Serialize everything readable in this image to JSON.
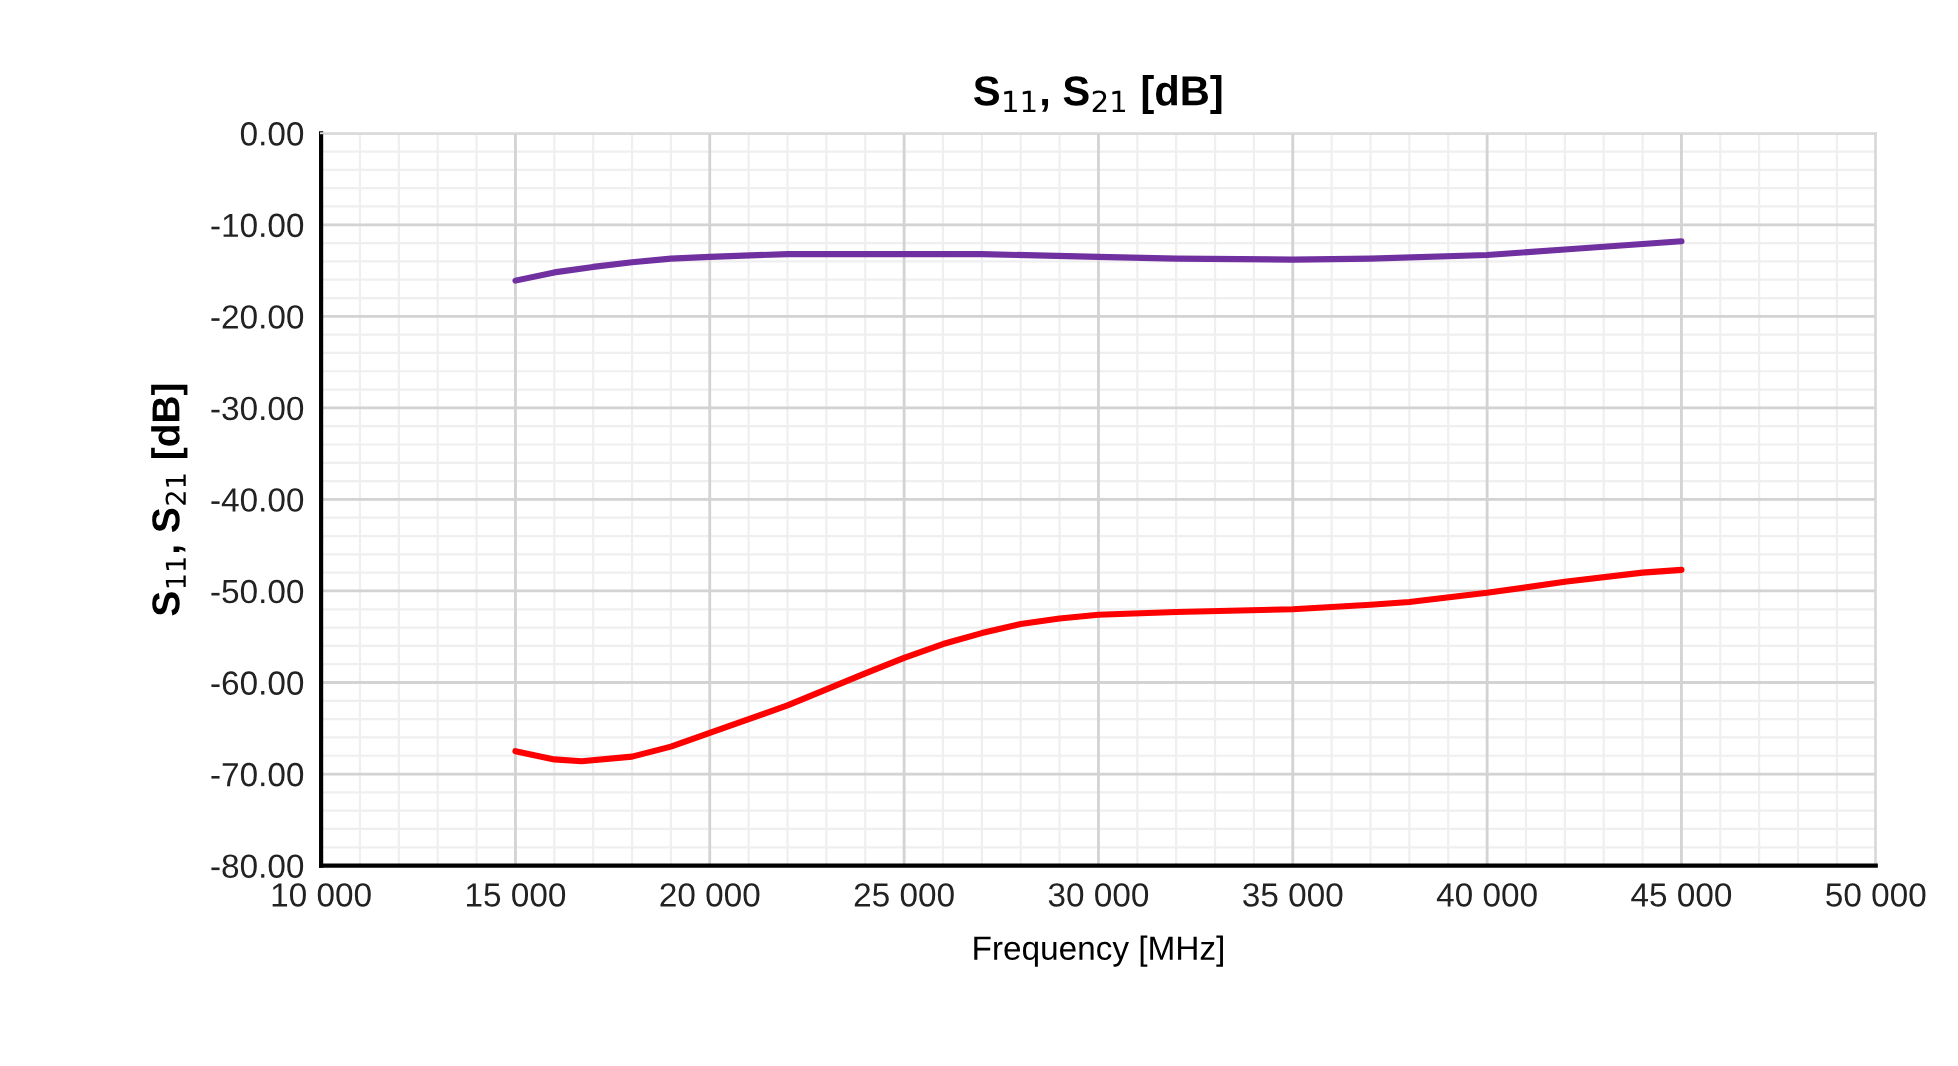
{
  "chart_data": {
    "type": "line",
    "title": "S$_{11}$, S$_{21}$ [dB]",
    "xlabel": "Frequency [MHz]",
    "ylabel": "S$_{11}$, S$_{21}$ [dB]",
    "xlim": [
      10000,
      50000
    ],
    "ylim": [
      -80,
      0
    ],
    "xticks": [
      {
        "value": 10000,
        "label": "10 000"
      },
      {
        "value": 15000,
        "label": "15 000"
      },
      {
        "value": 20000,
        "label": "20 000"
      },
      {
        "value": 25000,
        "label": "25 000"
      },
      {
        "value": 30000,
        "label": "30 000"
      },
      {
        "value": 35000,
        "label": "35 000"
      },
      {
        "value": 40000,
        "label": "40 000"
      },
      {
        "value": 45000,
        "label": "45 000"
      },
      {
        "value": 50000,
        "label": "50 000"
      }
    ],
    "yticks": [
      {
        "value": -80,
        "label": "-80.00"
      },
      {
        "value": -70,
        "label": "-70.00"
      },
      {
        "value": -60,
        "label": "-60.00"
      },
      {
        "value": -50,
        "label": "-50.00"
      },
      {
        "value": -40,
        "label": "-40.00"
      },
      {
        "value": -30,
        "label": "-30.00"
      },
      {
        "value": -20,
        "label": "-20.00"
      },
      {
        "value": -10,
        "label": "-10.00"
      },
      {
        "value": 0,
        "label": "0.00"
      }
    ],
    "grid": true,
    "marker": "none",
    "line_style": "solid",
    "series": [
      {
        "color": "#7030a0",
        "x": [
          15000,
          16000,
          17000,
          18000,
          19000,
          20000,
          22000,
          25000,
          27000,
          30000,
          32000,
          35000,
          37000,
          40000,
          42000,
          45000
        ],
        "values": [
          -16.1,
          -15.2,
          -14.6,
          -14.1,
          -13.7,
          -13.5,
          -13.2,
          -13.2,
          -13.2,
          -13.5,
          -13.7,
          -13.8,
          -13.7,
          -13.3,
          -12.7,
          -11.8
        ]
      },
      {
        "color": "#ff0000",
        "x": [
          15000,
          16000,
          16700,
          18000,
          19000,
          20000,
          22000,
          24000,
          25000,
          26000,
          27000,
          28000,
          29000,
          30000,
          32000,
          35000,
          37000,
          38000,
          40000,
          42000,
          44000,
          45000
        ],
        "values": [
          -67.5,
          -68.4,
          -68.6,
          -68.1,
          -67.0,
          -65.5,
          -62.5,
          -59.0,
          -57.3,
          -55.8,
          -54.6,
          -53.6,
          -53.0,
          -52.6,
          -52.3,
          -52.0,
          -51.5,
          -51.2,
          -50.2,
          -49.0,
          -48.0,
          -47.7
        ]
      }
    ]
  }
}
